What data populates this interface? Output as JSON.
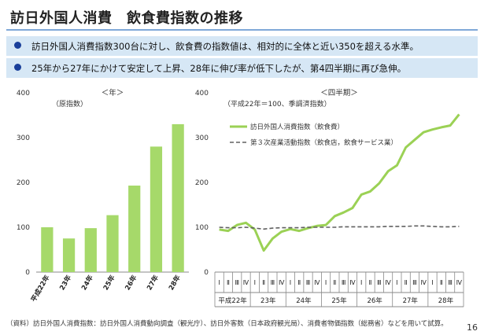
{
  "title": "訪日外国人消費　飲食費指数の推移",
  "bullets": [
    "訪日外国人消費指数300台に対し、飲食費の指数値は、相対的に全体と近い350を超える水準。",
    "25年から27年にかけて安定して上昇、28年に伸び率が低下したが、第4四半期に再び急伸。"
  ],
  "colors": {
    "green": "#a6d96a",
    "line_green": "#9bd155",
    "dashed": "#606060",
    "accent_blue": "#1a3f9a"
  },
  "chart_data": [
    {
      "type": "bar",
      "title": "＜年＞",
      "subtitle": "（原指数）",
      "categories": [
        "平成22年",
        "23年",
        "24年",
        "25年",
        "26年",
        "27年",
        "28年"
      ],
      "values": [
        100,
        75,
        98,
        127,
        193,
        280,
        330
      ],
      "ylim": [
        0,
        400
      ],
      "yticks": [
        "0",
        "100",
        "200",
        "300",
        "400"
      ],
      "xlabel": "",
      "ylabel": "",
      "grid": false
    },
    {
      "type": "line",
      "title": "＜四半期＞",
      "subtitle": "（平成22年＝100、季調済指数）",
      "ylim": [
        0,
        400
      ],
      "yticks": [
        "0",
        "100",
        "200",
        "300",
        "400"
      ],
      "quarter_labels": [
        "Ⅰ",
        "Ⅱ",
        "Ⅲ",
        "Ⅳ"
      ],
      "year_labels": [
        "平成22年",
        "23年",
        "24年",
        "25年",
        "26年",
        "27年",
        "28年"
      ],
      "legend_position": "top-left",
      "series": [
        {
          "name": "訪日外国人消費指数（飲食費）",
          "values": [
            95,
            92,
            105,
            110,
            95,
            48,
            75,
            90,
            96,
            92,
            98,
            103,
            105,
            125,
            133,
            143,
            173,
            180,
            198,
            225,
            238,
            278,
            295,
            312,
            318,
            323,
            327,
            352
          ]
        },
        {
          "name": "第３次産業活動指数（飲食店，飲食サービス業）",
          "values": [
            100,
            99,
            99,
            100,
            98,
            96,
            98,
            99,
            99,
            99,
            100,
            100,
            100,
            100,
            101,
            101,
            101,
            101,
            101,
            102,
            102,
            102,
            103,
            103,
            102,
            101,
            101,
            102
          ]
        }
      ]
    }
  ],
  "footnote": "（資料）訪日外国人消費指数：訪日外国人消費動向調査（観光庁）、訪日外客数（日本政府観光局）、消費者物価指数（総務省）などを用いて試算。",
  "page_number": "16"
}
